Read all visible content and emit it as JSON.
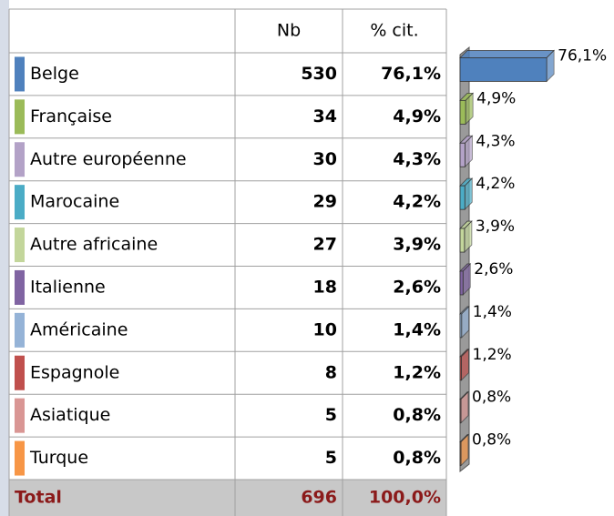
{
  "table": {
    "columns": [
      "Nb",
      "% cit."
    ],
    "rows": [
      [
        "Belge",
        "530",
        "76,1%"
      ],
      [
        "Française",
        "34",
        "4,9%"
      ],
      [
        "Autre européenne",
        "30",
        "4,3%"
      ],
      [
        "Marocaine",
        "29",
        "4,2%"
      ],
      [
        "Autre africaine",
        "27",
        "3,9%"
      ],
      [
        "Italienne",
        "18",
        "2,6%"
      ],
      [
        "Américaine",
        "10",
        "1,4%"
      ],
      [
        "Espagnole",
        "8",
        "1,2%"
      ],
      [
        "Asiatique",
        "5",
        "0,8%"
      ],
      [
        "Turque",
        "5",
        "0,8%"
      ]
    ],
    "total": [
      "Total",
      "696",
      "100,0%"
    ]
  },
  "chart_data": {
    "type": "bar",
    "values": [
      76.1,
      4.9,
      4.3,
      4.2,
      3.9,
      2.6,
      1.4,
      1.2,
      0.8,
      0.8
    ],
    "value_labels": [
      "76,1%",
      "4,9%",
      "4,3%",
      "4,2%",
      "3,9%",
      "2,6%",
      "1,4%",
      "1,2%",
      "0,8%",
      "0,8%"
    ],
    "colors": [
      "#4f81bd",
      "#9bbb59",
      "#b3a2c7",
      "#4bacc6",
      "#c3d69b",
      "#8064a2",
      "#95b3d7",
      "#c0504d",
      "#d99694",
      "#f79646"
    ]
  }
}
